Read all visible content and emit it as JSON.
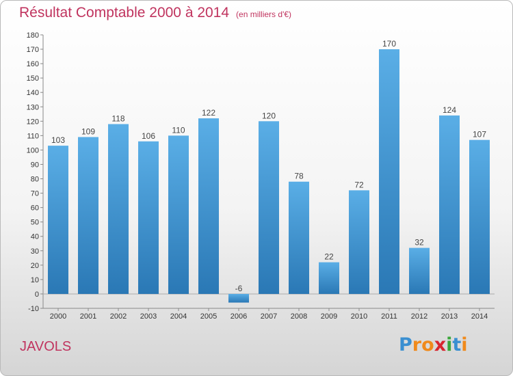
{
  "header": {
    "title": "Résultat Comptable 2000 à 2014",
    "unit": "(en milliers d'€)"
  },
  "footer": {
    "commune": "JAVOLS",
    "logo_letters": [
      "P",
      "r",
      "o",
      "x",
      "i",
      "t",
      "i"
    ]
  },
  "colors": {
    "title": "#c0335e",
    "bar_top": "#5aaee6",
    "bar_bottom": "#2a78b5",
    "logo": [
      "#3a8fd1",
      "#f08a1c",
      "#f08a1c",
      "#d8262f",
      "#3aa63a",
      "#3a8fd1",
      "#f08a1c"
    ]
  },
  "chart_data": {
    "type": "bar",
    "title": "Résultat Comptable 2000 à 2014",
    "subtitle": "(en milliers d'€)",
    "categories": [
      "2000",
      "2001",
      "2002",
      "2003",
      "2004",
      "2005",
      "2006",
      "2007",
      "2008",
      "2009",
      "2010",
      "2011",
      "2012",
      "2013",
      "2014"
    ],
    "values": [
      103,
      109,
      118,
      106,
      110,
      122,
      -6,
      120,
      78,
      22,
      72,
      170,
      32,
      124,
      107
    ],
    "ylim": [
      -10,
      180
    ],
    "yticks": [
      -10,
      0,
      10,
      20,
      30,
      40,
      50,
      60,
      70,
      80,
      90,
      100,
      110,
      120,
      130,
      140,
      150,
      160,
      170,
      180
    ],
    "grid": false,
    "legend": "none"
  }
}
